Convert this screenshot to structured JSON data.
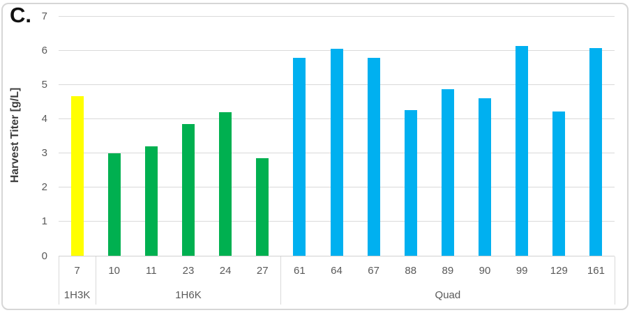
{
  "panel_label": "C.",
  "chart_data": {
    "type": "bar",
    "title": "C.",
    "xlabel": "",
    "ylabel": "Harvest Titer [g/L]",
    "ylim": [
      0,
      7
    ],
    "ytick_step": 1,
    "grid": true,
    "legend_position": "none",
    "tick_label_color": "#595959",
    "gridline_color": "#d9d9d9",
    "groups": [
      {
        "label": "1H3K",
        "color": "#FFFF00",
        "categories": [
          "7"
        ],
        "values": [
          4.65
        ]
      },
      {
        "label": "1H6K",
        "color": "#00B050",
        "categories": [
          "10",
          "11",
          "23",
          "24",
          "27"
        ],
        "values": [
          3.0,
          3.2,
          3.85,
          4.2,
          2.85
        ]
      },
      {
        "label": "Quad",
        "color": "#00B0F0",
        "categories": [
          "61",
          "64",
          "67",
          "88",
          "89",
          "90",
          "99",
          "129",
          "161"
        ],
        "values": [
          5.77,
          6.05,
          5.77,
          4.25,
          4.87,
          4.6,
          6.13,
          4.22,
          6.07
        ]
      }
    ]
  }
}
